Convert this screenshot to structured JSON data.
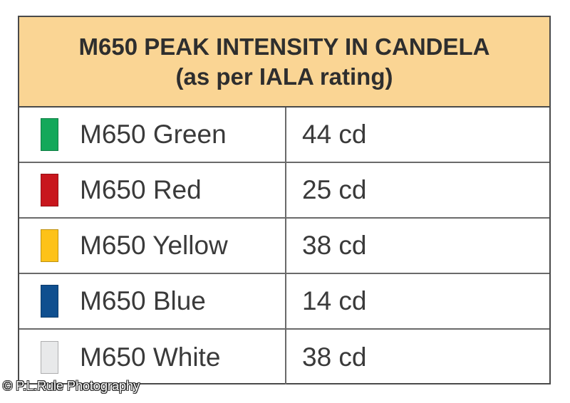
{
  "header": {
    "title_line1": "M650 PEAK INTENSITY IN CANDELA",
    "title_line2": "(as per IALA rating)"
  },
  "rows": [
    {
      "name": "M650 Green",
      "value": "44 cd",
      "color": "#13a85a"
    },
    {
      "name": "M650 Red",
      "value": "25 cd",
      "color": "#c8161d"
    },
    {
      "name": "M650 Yellow",
      "value": "38 cd",
      "color": "#fdc218"
    },
    {
      "name": "M650 Blue",
      "value": "14 cd",
      "color": "#0f4f8f"
    },
    {
      "name": "M650 White",
      "value": "38 cd",
      "color": "#e8e9ea"
    }
  ],
  "credit": "© P.L.Rule Photography"
}
